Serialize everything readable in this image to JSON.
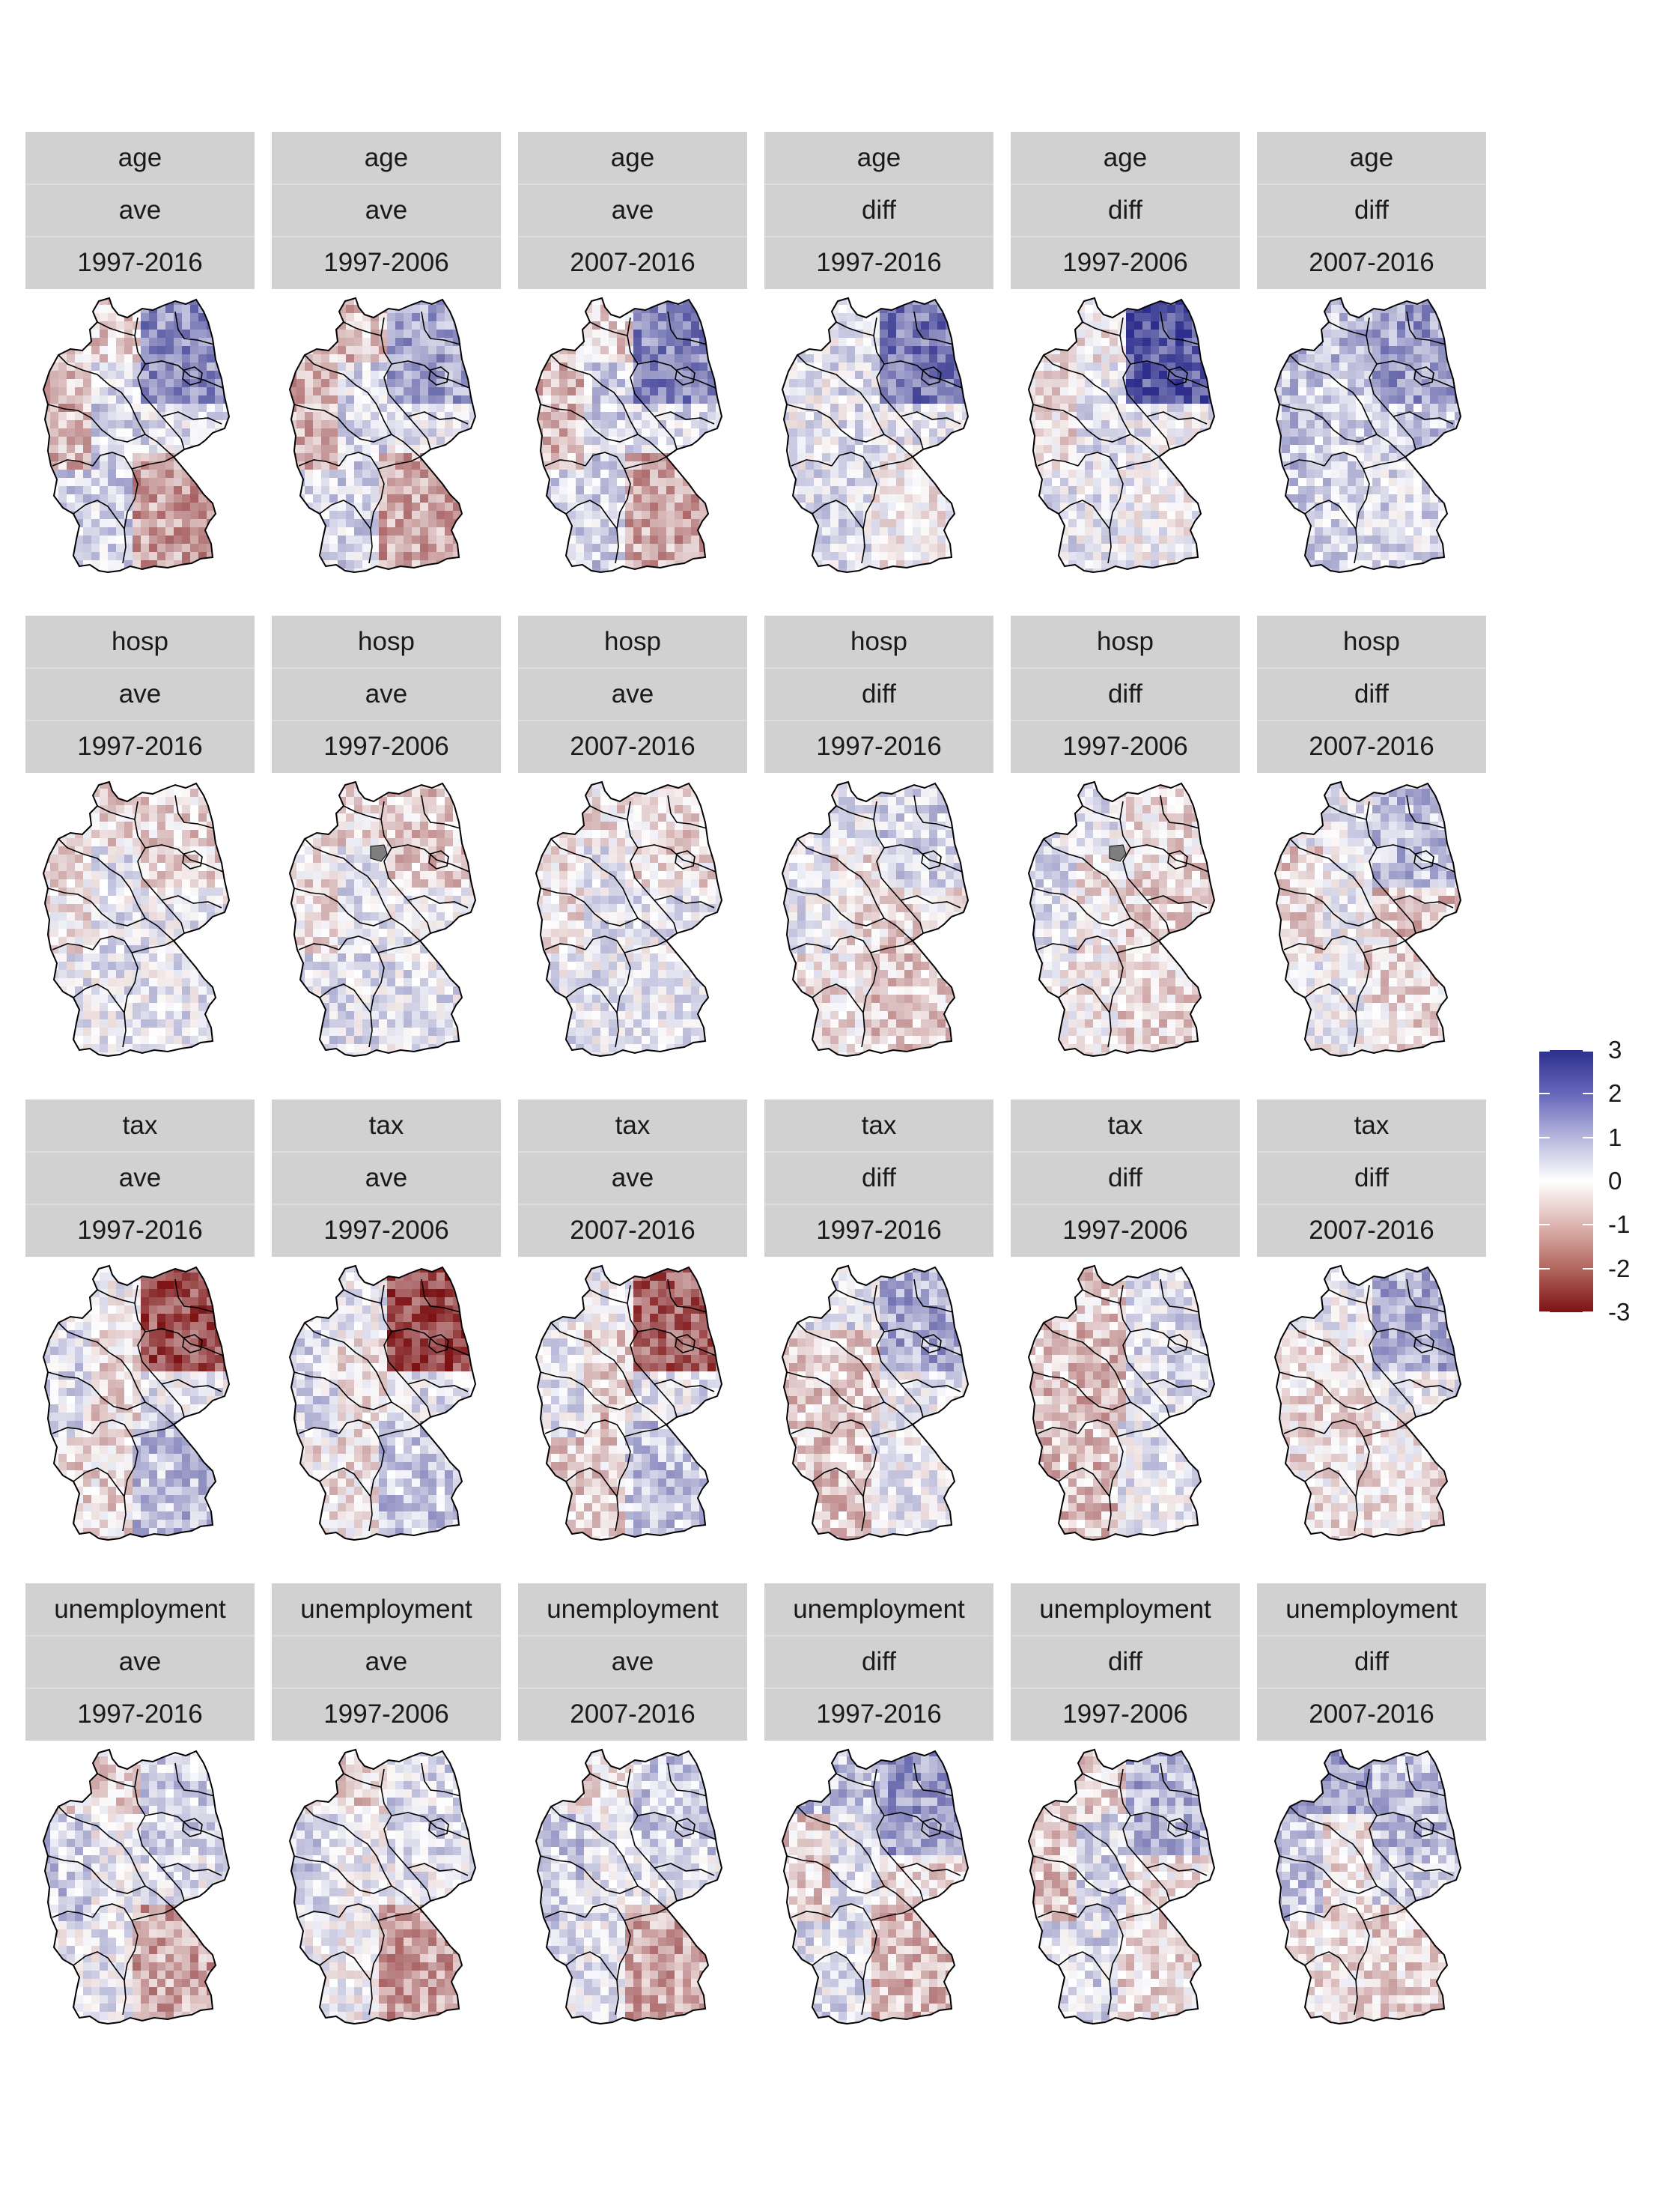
{
  "facets": [
    {
      "variable": "age",
      "statistic": "ave",
      "period": "1997-2016",
      "pattern": [
        -0.6,
        1.6,
        -0.9,
        0.6,
        0.4,
        -1.2
      ]
    },
    {
      "variable": "age",
      "statistic": "ave",
      "period": "1997-2006",
      "pattern": [
        -0.8,
        1.3,
        -1.0,
        0.5,
        0.3,
        -1.1
      ]
    },
    {
      "variable": "age",
      "statistic": "ave",
      "period": "2007-2016",
      "pattern": [
        -0.5,
        1.7,
        -0.8,
        0.6,
        0.5,
        -1.1
      ]
    },
    {
      "variable": "age",
      "statistic": "diff",
      "period": "1997-2016",
      "pattern": [
        0.3,
        1.9,
        0.2,
        0.4,
        0.3,
        -0.1
      ]
    },
    {
      "variable": "age",
      "statistic": "diff",
      "period": "1997-2006",
      "pattern": [
        -0.2,
        2.4,
        -0.4,
        0.3,
        0.2,
        0.1
      ]
    },
    {
      "variable": "age",
      "statistic": "diff",
      "period": "2007-2016",
      "pattern": [
        0.9,
        1.4,
        0.8,
        0.6,
        0.7,
        0.5
      ]
    },
    {
      "variable": "hosp",
      "statistic": "ave",
      "period": "1997-2016",
      "pattern": [
        -0.4,
        -0.5,
        -0.3,
        0.3,
        0.2,
        0.3
      ]
    },
    {
      "variable": "hosp",
      "statistic": "ave",
      "period": "1997-2006",
      "pattern": [
        -0.4,
        -0.6,
        -0.3,
        0.4,
        0.2,
        0.3
      ]
    },
    {
      "variable": "hosp",
      "statistic": "ave",
      "period": "2007-2016",
      "pattern": [
        -0.3,
        -0.4,
        -0.3,
        0.3,
        0.3,
        0.2
      ]
    },
    {
      "variable": "hosp",
      "statistic": "diff",
      "period": "1997-2016",
      "pattern": [
        0.4,
        0.6,
        0.3,
        -0.3,
        -0.4,
        -0.6
      ]
    },
    {
      "variable": "hosp",
      "statistic": "diff",
      "period": "1997-2006",
      "pattern": [
        0.3,
        -0.4,
        0.5,
        -0.2,
        -0.5,
        -0.5
      ]
    },
    {
      "variable": "hosp",
      "statistic": "diff",
      "period": "2007-2016",
      "pattern": [
        0.2,
        0.9,
        -0.5,
        0.1,
        -0.7,
        -0.4
      ]
    },
    {
      "variable": "tax",
      "statistic": "ave",
      "period": "1997-2016",
      "pattern": [
        0.1,
        -2.2,
        0.4,
        -0.4,
        0.3,
        0.9
      ]
    },
    {
      "variable": "tax",
      "statistic": "ave",
      "period": "1997-2006",
      "pattern": [
        0.2,
        -2.3,
        0.5,
        -0.3,
        0.4,
        0.8
      ]
    },
    {
      "variable": "tax",
      "statistic": "ave",
      "period": "2007-2016",
      "pattern": [
        0.1,
        -2.0,
        0.4,
        -0.6,
        0.3,
        0.8
      ]
    },
    {
      "variable": "tax",
      "statistic": "diff",
      "period": "1997-2016",
      "pattern": [
        0.4,
        1.2,
        -0.6,
        -0.7,
        0.1,
        0.2
      ]
    },
    {
      "variable": "tax",
      "statistic": "diff",
      "period": "1997-2006",
      "pattern": [
        -0.6,
        0.4,
        -0.7,
        -0.8,
        0.5,
        0.3
      ]
    },
    {
      "variable": "tax",
      "statistic": "diff",
      "period": "2007-2016",
      "pattern": [
        0.3,
        1.1,
        -0.4,
        -0.3,
        0.2,
        -0.3
      ]
    },
    {
      "variable": "unemployment",
      "statistic": "ave",
      "period": "1997-2016",
      "pattern": [
        -0.4,
        0.6,
        0.7,
        0.2,
        0.3,
        -1.1
      ]
    },
    {
      "variable": "unemployment",
      "statistic": "ave",
      "period": "1997-2006",
      "pattern": [
        -0.5,
        0.5,
        0.6,
        0.1,
        0.2,
        -1.2
      ]
    },
    {
      "variable": "unemployment",
      "statistic": "ave",
      "period": "2007-2016",
      "pattern": [
        -0.3,
        0.7,
        0.7,
        0.3,
        0.3,
        -1.1
      ]
    },
    {
      "variable": "unemployment",
      "statistic": "diff",
      "period": "1997-2016",
      "pattern": [
        0.9,
        1.4,
        -0.6,
        0.4,
        -0.4,
        -0.9
      ]
    },
    {
      "variable": "unemployment",
      "statistic": "diff",
      "period": "1997-2006",
      "pattern": [
        -0.5,
        1.1,
        -0.7,
        0.5,
        -0.3,
        -0.4
      ]
    },
    {
      "variable": "unemployment",
      "statistic": "diff",
      "period": "2007-2016",
      "pattern": [
        1.3,
        0.9,
        0.8,
        -0.3,
        0.6,
        -0.5
      ]
    }
  ],
  "legend": {
    "labels": [
      "3",
      "2",
      "1",
      "0",
      "-1",
      "-2",
      "-3"
    ],
    "values": [
      3,
      2,
      1,
      0,
      -1,
      -2,
      -3
    ],
    "min": -3,
    "max": 3,
    "colors": {
      "high": "#2e2f8c",
      "mid": "#ffffff",
      "low": "#7c1214"
    }
  },
  "colors": {
    "strip_background": "#d1d1d1",
    "border": "#000000",
    "missing": "#7f7f7f"
  }
}
